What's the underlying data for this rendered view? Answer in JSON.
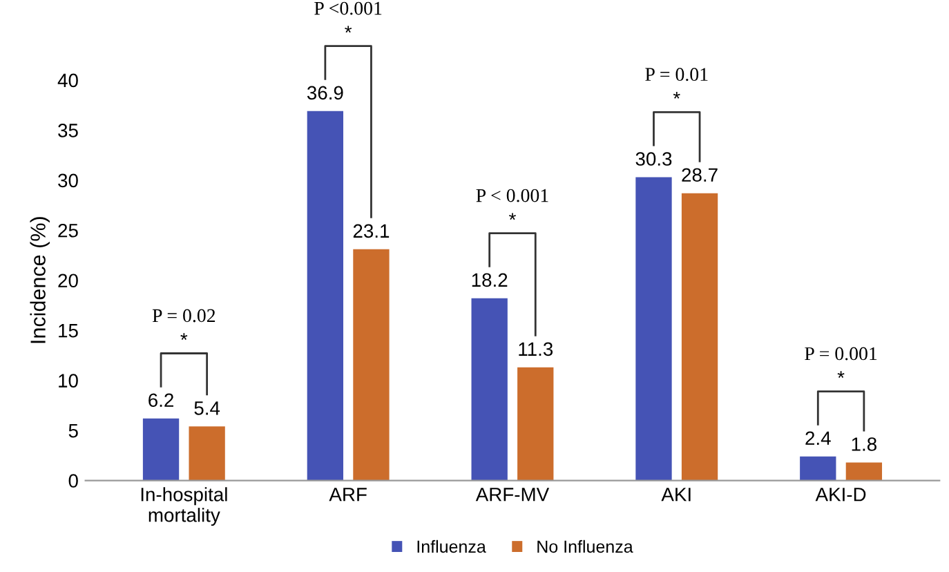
{
  "chart_data": {
    "type": "bar",
    "ylabel": "Incidence (%)",
    "categories": [
      "In-hospital\nmortality",
      "ARF",
      "ARF-MV",
      "AKI",
      "AKI-D"
    ],
    "series": [
      {
        "name": "Influenza",
        "color": "#4553b5",
        "values": [
          6.2,
          36.9,
          18.2,
          30.3,
          2.4
        ]
      },
      {
        "name": "No Influenza",
        "color": "#cc6d2c",
        "values": [
          5.4,
          23.1,
          11.3,
          28.7,
          1.8
        ]
      }
    ],
    "ylim": [
      0,
      40
    ],
    "yticks": [
      0,
      5,
      10,
      15,
      20,
      25,
      30,
      35,
      40
    ],
    "data_labels": true,
    "grid": false,
    "legend": "bottom",
    "annotations": [
      "P = 0.02",
      "*",
      "P <0.001",
      "*",
      "P < 0.001",
      "*",
      "P = 0.01",
      "*",
      "P = 0.001",
      "*"
    ]
  }
}
